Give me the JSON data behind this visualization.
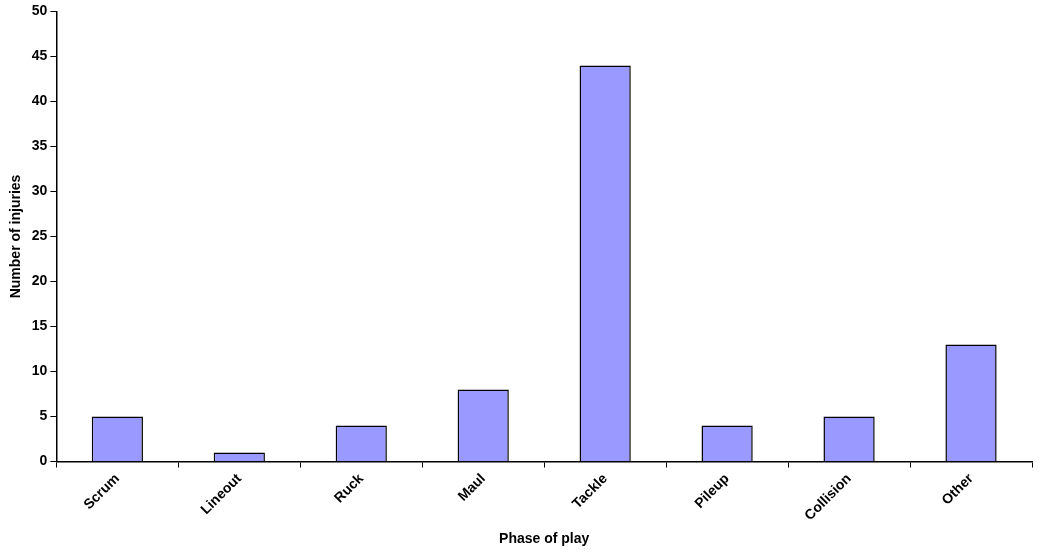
{
  "chart_data": {
    "type": "bar",
    "xlabel": "Phase of play",
    "ylabel": "Number of injuries",
    "categories": [
      "Scrum",
      "Lineout",
      "Ruck",
      "Maul",
      "Tackle",
      "Pileup",
      "Collision",
      "Other"
    ],
    "values": [
      5,
      1,
      4,
      8,
      44,
      4,
      5,
      13
    ],
    "color": "#9999ff",
    "ylim": [
      0,
      50
    ],
    "yticks": [
      0,
      5,
      10,
      15,
      20,
      25,
      30,
      35,
      40,
      45,
      50
    ],
    "grid": false,
    "legend": false
  }
}
